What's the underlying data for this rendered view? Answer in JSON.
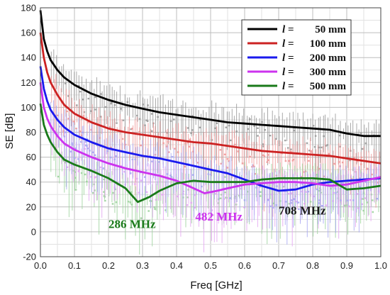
{
  "chart_data": {
    "type": "line",
    "xlabel": "Freq [GHz]",
    "ylabel": "SE [dB]",
    "xlim": [
      0,
      1.0
    ],
    "ylim": [
      -20,
      180
    ],
    "x_ticks": [
      "0.0",
      "0.1",
      "0.2",
      "0.3",
      "0.4",
      "0.5",
      "0.6",
      "0.7",
      "0.8",
      "0.9",
      "1.0"
    ],
    "y_ticks": [
      "-20",
      "0",
      "20",
      "40",
      "60",
      "80",
      "100",
      "120",
      "140",
      "160",
      "180"
    ],
    "grid": true,
    "legend_position": "top-right",
    "legend_symbol": "l =",
    "series": [
      {
        "name": "50 mm",
        "color": "#000000",
        "x": [
          0.0,
          0.01,
          0.02,
          0.03,
          0.05,
          0.07,
          0.1,
          0.15,
          0.2,
          0.25,
          0.3,
          0.35,
          0.4,
          0.45,
          0.5,
          0.55,
          0.6,
          0.65,
          0.7,
          0.75,
          0.8,
          0.85,
          0.9,
          0.95,
          1.0
        ],
        "y": [
          178,
          155,
          145,
          138,
          130,
          124,
          118,
          111,
          106,
          102,
          99,
          96,
          94,
          92,
          90,
          88,
          87,
          86,
          85,
          84,
          83,
          82,
          79,
          77,
          77
        ]
      },
      {
        "name": "100 mm",
        "color": "#cc2222",
        "x": [
          0.0,
          0.01,
          0.02,
          0.03,
          0.05,
          0.07,
          0.1,
          0.15,
          0.2,
          0.25,
          0.3,
          0.35,
          0.4,
          0.45,
          0.5,
          0.55,
          0.6,
          0.65,
          0.7,
          0.75,
          0.8,
          0.85,
          0.9,
          0.95,
          1.0
        ],
        "y": [
          160,
          140,
          128,
          120,
          110,
          102,
          95,
          88,
          83,
          80,
          78,
          76,
          74,
          72,
          71,
          69,
          67,
          65,
          64,
          63,
          62,
          61,
          59,
          57,
          55
        ]
      },
      {
        "name": "200 mm",
        "color": "#1a1aee",
        "x": [
          0.0,
          0.01,
          0.02,
          0.03,
          0.05,
          0.07,
          0.1,
          0.15,
          0.2,
          0.25,
          0.3,
          0.35,
          0.4,
          0.45,
          0.5,
          0.55,
          0.6,
          0.65,
          0.7,
          0.75,
          0.8,
          0.85,
          0.9,
          0.95,
          1.0
        ],
        "y": [
          133,
          115,
          105,
          98,
          90,
          84,
          78,
          72,
          67,
          64,
          61,
          59,
          56,
          53,
          50,
          47,
          42,
          37,
          33,
          34,
          38,
          40,
          41,
          42,
          43
        ]
      },
      {
        "name": "300 mm",
        "color": "#cc33ee",
        "x": [
          0.0,
          0.01,
          0.02,
          0.03,
          0.05,
          0.07,
          0.1,
          0.15,
          0.2,
          0.25,
          0.3,
          0.35,
          0.4,
          0.45,
          0.482,
          0.52,
          0.55,
          0.6,
          0.65,
          0.7,
          0.75,
          0.8,
          0.85,
          0.9,
          0.95,
          1.0
        ],
        "y": [
          120,
          100,
          91,
          85,
          77,
          71,
          66,
          60,
          55,
          51,
          48,
          45,
          41,
          35,
          31,
          33,
          35,
          38,
          39,
          40,
          40,
          39,
          37,
          38,
          41,
          44
        ]
      },
      {
        "name": "500 mm",
        "color": "#1a7a1a",
        "x": [
          0.0,
          0.01,
          0.02,
          0.03,
          0.05,
          0.07,
          0.1,
          0.15,
          0.2,
          0.25,
          0.286,
          0.32,
          0.35,
          0.4,
          0.45,
          0.5,
          0.55,
          0.6,
          0.65,
          0.7,
          0.75,
          0.8,
          0.85,
          0.9,
          0.95,
          1.0
        ],
        "y": [
          103,
          86,
          78,
          72,
          64,
          58,
          54,
          49,
          43,
          35,
          24,
          28,
          33,
          39,
          41,
          40,
          40,
          40,
          42,
          43,
          43,
          43,
          42,
          34,
          35,
          37
        ]
      }
    ],
    "annotations": [
      {
        "text": "286 MHz",
        "x": 0.2,
        "y": 3,
        "color": "#1a7a1a"
      },
      {
        "text": "482 MHz",
        "x": 0.455,
        "y": 9,
        "color": "#cc33ee"
      },
      {
        "text": "708 MHz",
        "x": 0.7,
        "y": 14,
        "color": "#1a1a1a"
      }
    ]
  }
}
